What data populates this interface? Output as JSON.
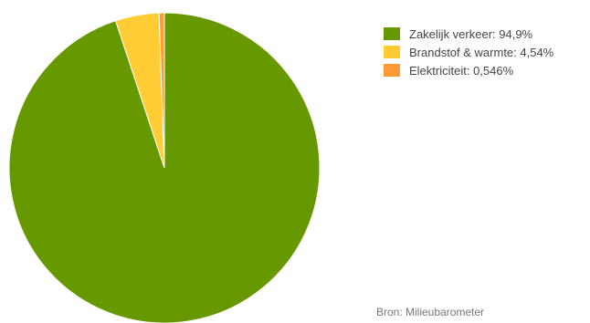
{
  "chart_data": {
    "type": "pie",
    "categories": [
      "Zakelijk verkeer",
      "Brandstof & warmte",
      "Elektriciteit"
    ],
    "values": [
      94.9,
      4.54,
      0.546
    ],
    "legend": {
      "position": "top-right",
      "entries": [
        "Zakelijk verkeer: 94,9%",
        "Brandstof & warmte: 4,54%",
        "Elektriciteit: 0,546%"
      ]
    },
    "colors": [
      "#669900",
      "#ffcc33",
      "#ff9933"
    ],
    "source": "Bron: Milieubarometer"
  }
}
